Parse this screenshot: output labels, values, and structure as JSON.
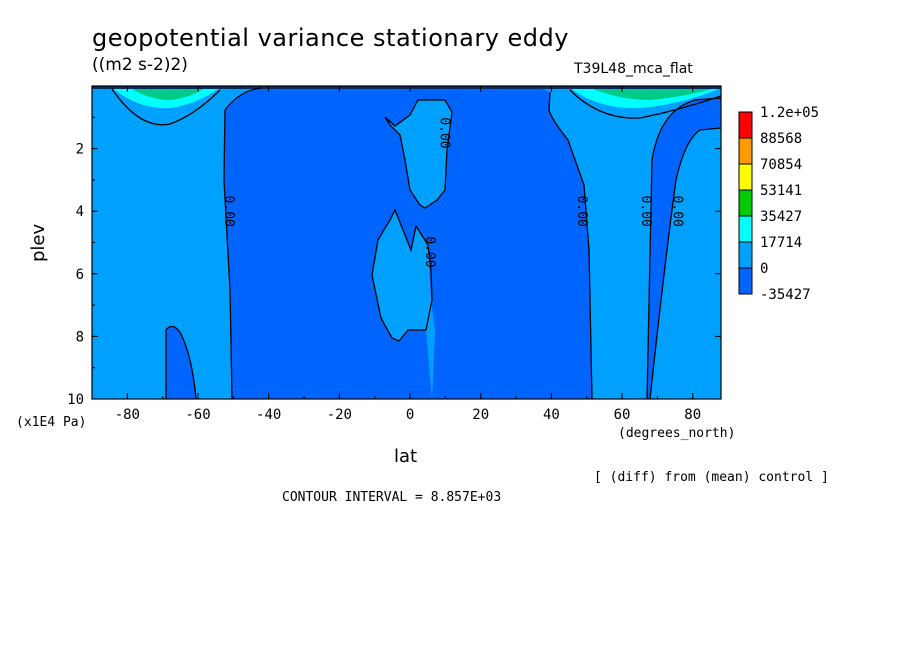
{
  "chart_data": {
    "type": "contour",
    "title": "geopotential variance stationary eddy",
    "units": "((m2 s-2)2)",
    "run_id": "T39L48_mca_flat",
    "xlabel": "lat",
    "x_units": "(degrees_north)",
    "ylabel": "plev",
    "y_units": "(x1E4 Pa)",
    "xlim": [
      -90,
      88
    ],
    "ylim": [
      10,
      0
    ],
    "x_ticks": [
      -80,
      -60,
      -40,
      -20,
      0,
      20,
      40,
      60,
      80
    ],
    "y_ticks": [
      2,
      4,
      6,
      8,
      10
    ],
    "contour_labels": [
      {
        "text": "0.00",
        "lat": -51,
        "plev": 4.0
      },
      {
        "text": "0.00",
        "lat": 10,
        "plev": 1.5
      },
      {
        "text": "0.00",
        "lat": 6,
        "plev": 5.3
      },
      {
        "text": "0.00",
        "lat": 49,
        "plev": 4.0
      },
      {
        "text": "0.00",
        "lat": 67,
        "plev": 4.0
      },
      {
        "text": "0.00",
        "lat": 76,
        "plev": 4.0
      }
    ],
    "legend": {
      "placement": "right",
      "levels": [
        "1.2e+05",
        "88568",
        "70854",
        "53141",
        "35427",
        "17714",
        "0",
        "-35427"
      ],
      "colors": [
        "#ff0000",
        "#ff9900",
        "#ffff00",
        "#00cc00",
        "#00ffff",
        "#00a0ff",
        "#0064ff"
      ]
    },
    "contour_interval_note": "CONTOUR INTERVAL = 8.857E+03",
    "comparison_note": "[ (diff) from (mean) control ]"
  }
}
